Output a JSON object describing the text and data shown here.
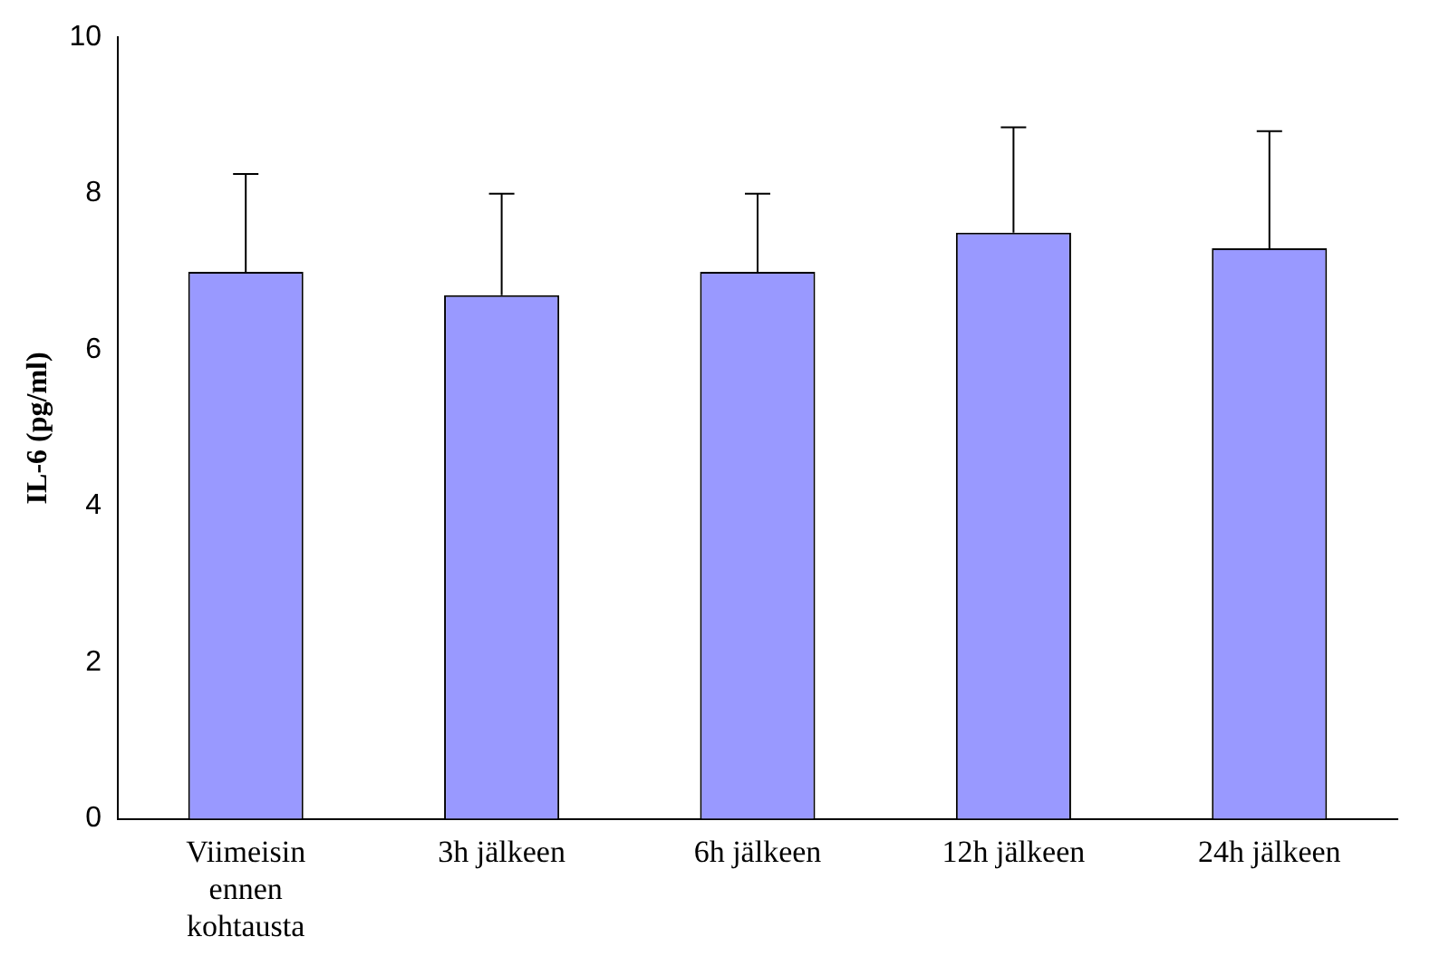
{
  "chart_data": {
    "type": "bar",
    "ylabel": "IL-6 (pg/ml)",
    "categories": [
      "Viimeisin ennen kohtausta",
      "3h jälkeen",
      "6h jälkeen",
      "12h jälkeen",
      "24h jälkeen"
    ],
    "values": [
      7.0,
      6.7,
      7.0,
      7.5,
      7.3
    ],
    "errors": [
      [
        7.0,
        8.25
      ],
      [
        6.7,
        8.0
      ],
      [
        7.0,
        8.0
      ],
      [
        7.5,
        8.85
      ],
      [
        7.3,
        8.8
      ]
    ],
    "color": "#9999ff",
    "ylim": [
      0,
      10
    ],
    "yticks": [
      0,
      2,
      4,
      6,
      8,
      10
    ],
    "grid": false,
    "legend": false
  }
}
